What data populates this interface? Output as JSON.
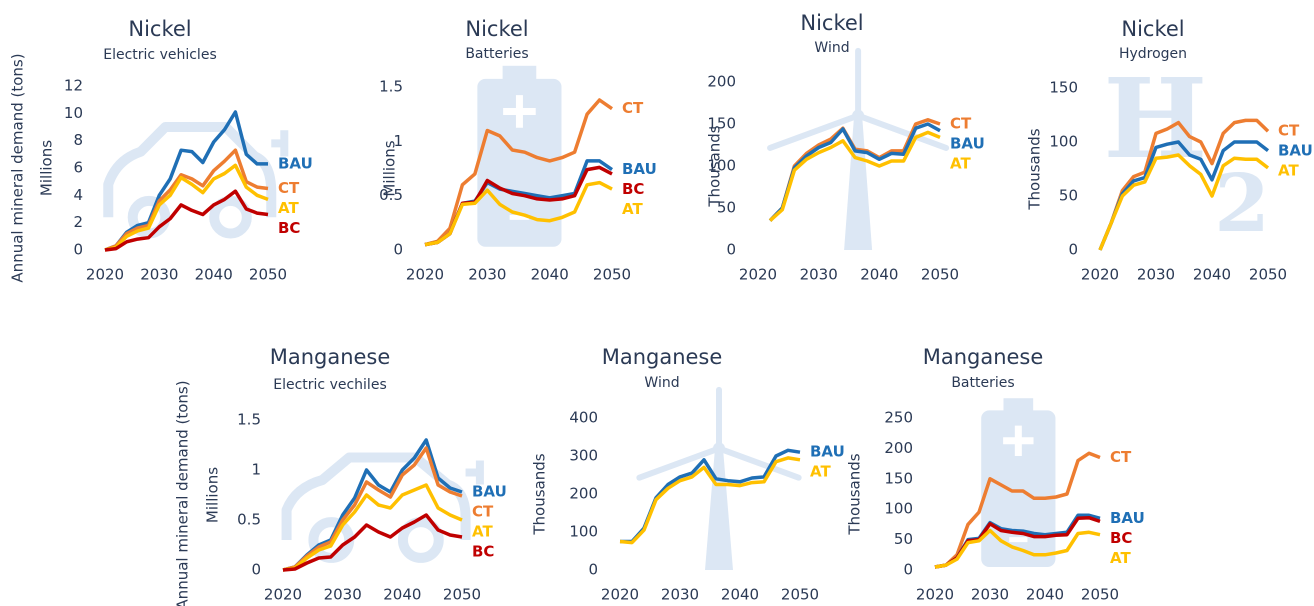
{
  "chart_data": [
    {
      "type": "line",
      "title": "Nickel",
      "subtitle": "Electric vehicles",
      "yaxis_title": "Annual mineral demand (tons)",
      "ylabel": "Millions",
      "icon": "car",
      "x": [
        2020,
        2022,
        2024,
        2026,
        2028,
        2030,
        2032,
        2034,
        2036,
        2038,
        2040,
        2042,
        2044,
        2046,
        2048,
        2050
      ],
      "xlim": [
        2020,
        2050
      ],
      "xticks": [
        2020,
        2030,
        2040,
        2050
      ],
      "ylim": [
        0,
        12
      ],
      "yticks": [
        0,
        2,
        4,
        6,
        8,
        10,
        12
      ],
      "series": [
        {
          "name": "BAU",
          "color": "#1f6fb5",
          "values": [
            0,
            0.3,
            1.3,
            1.8,
            2.0,
            4.0,
            5.2,
            7.3,
            7.2,
            6.4,
            7.9,
            8.8,
            10.1,
            7.0,
            6.3,
            6.3
          ]
        },
        {
          "name": "CT",
          "color": "#ed7d31",
          "values": [
            0,
            0.3,
            1.2,
            1.6,
            1.8,
            3.6,
            4.4,
            5.5,
            5.2,
            4.7,
            5.8,
            6.5,
            7.3,
            5.0,
            4.6,
            4.5
          ]
        },
        {
          "name": "AT",
          "color": "#ffc000",
          "values": [
            0,
            0.2,
            1.0,
            1.4,
            1.6,
            3.3,
            4.0,
            5.3,
            4.8,
            4.2,
            5.2,
            5.6,
            6.2,
            4.6,
            4.0,
            3.7
          ]
        },
        {
          "name": "BC",
          "color": "#c00000",
          "values": [
            0,
            0.1,
            0.6,
            0.8,
            0.9,
            1.7,
            2.3,
            3.3,
            2.9,
            2.6,
            3.3,
            3.7,
            4.3,
            3.0,
            2.7,
            2.6
          ]
        }
      ]
    },
    {
      "type": "line",
      "title": "Nickel",
      "subtitle": "Batteries",
      "ylabel": "Millions",
      "icon": "battery",
      "x": [
        2020,
        2022,
        2024,
        2026,
        2028,
        2030,
        2032,
        2034,
        2036,
        2038,
        2040,
        2042,
        2044,
        2046,
        2048,
        2050
      ],
      "xlim": [
        2020,
        2050
      ],
      "xticks": [
        2020,
        2030,
        2040,
        2050
      ],
      "ylim": [
        0,
        1.5
      ],
      "yticks": [
        0,
        0.5,
        1,
        1.5
      ],
      "series": [
        {
          "name": "CT",
          "color": "#ed7d31",
          "values": [
            0.05,
            0.08,
            0.2,
            0.6,
            0.7,
            1.1,
            1.05,
            0.92,
            0.9,
            0.85,
            0.82,
            0.85,
            0.9,
            1.25,
            1.38,
            1.3
          ]
        },
        {
          "name": "BAU",
          "color": "#1f6fb5",
          "values": [
            0.05,
            0.07,
            0.15,
            0.43,
            0.45,
            0.62,
            0.56,
            0.54,
            0.52,
            0.5,
            0.48,
            0.5,
            0.52,
            0.82,
            0.82,
            0.74
          ]
        },
        {
          "name": "BC",
          "color": "#c00000",
          "values": [
            0.05,
            0.07,
            0.15,
            0.43,
            0.44,
            0.64,
            0.57,
            0.52,
            0.5,
            0.47,
            0.46,
            0.47,
            0.5,
            0.74,
            0.76,
            0.7
          ]
        },
        {
          "name": "AT",
          "color": "#ffc000",
          "values": [
            0.05,
            0.07,
            0.15,
            0.42,
            0.43,
            0.55,
            0.42,
            0.35,
            0.32,
            0.28,
            0.27,
            0.3,
            0.35,
            0.6,
            0.62,
            0.56
          ]
        }
      ]
    },
    {
      "type": "line",
      "title": "Nickel",
      "subtitle": "Wind",
      "ylabel": "Thousands",
      "icon": "turbine",
      "x": [
        2020,
        2022,
        2024,
        2026,
        2028,
        2030,
        2032,
        2034,
        2036,
        2038,
        2040,
        2042,
        2044,
        2046,
        2048,
        2050
      ],
      "xlim": [
        2020,
        2050
      ],
      "xticks": [
        2020,
        2030,
        2040,
        2050
      ],
      "ylim": [
        0,
        200
      ],
      "yticks": [
        0,
        50,
        100,
        150,
        200
      ],
      "series": [
        {
          "name": "CT",
          "color": "#ed7d31",
          "values": [
            null,
            35,
            50,
            100,
            115,
            125,
            132,
            145,
            120,
            118,
            110,
            118,
            118,
            150,
            155,
            150
          ]
        },
        {
          "name": "BAU",
          "color": "#1f6fb5",
          "values": [
            null,
            35,
            50,
            98,
            112,
            122,
            128,
            144,
            118,
            116,
            108,
            115,
            114,
            145,
            150,
            142
          ]
        },
        {
          "name": "AT",
          "color": "#ffc000",
          "values": [
            null,
            35,
            48,
            95,
            108,
            116,
            122,
            130,
            110,
            106,
            100,
            106,
            106,
            134,
            140,
            134
          ]
        }
      ]
    },
    {
      "type": "line",
      "title": "Nickel",
      "subtitle": "Hydrogen",
      "ylabel": "Thousands",
      "watermark": [
        "H",
        "2"
      ],
      "x": [
        2020,
        2022,
        2024,
        2026,
        2028,
        2030,
        2032,
        2034,
        2036,
        2038,
        2040,
        2042,
        2044,
        2046,
        2048,
        2050
      ],
      "xlim": [
        2020,
        2050
      ],
      "xticks": [
        2020,
        2030,
        2040,
        2050
      ],
      "ylim": [
        0,
        150
      ],
      "yticks": [
        0,
        50,
        100,
        150
      ],
      "series": [
        {
          "name": "CT",
          "color": "#ed7d31",
          "values": [
            0,
            25,
            55,
            68,
            72,
            108,
            112,
            118,
            105,
            100,
            80,
            108,
            118,
            120,
            120,
            110
          ]
        },
        {
          "name": "BAU",
          "color": "#1f6fb5",
          "values": [
            0,
            25,
            52,
            64,
            67,
            95,
            98,
            100,
            88,
            84,
            65,
            92,
            100,
            100,
            100,
            92
          ]
        },
        {
          "name": "AT",
          "color": "#ffc000",
          "values": [
            0,
            25,
            50,
            60,
            63,
            85,
            86,
            88,
            78,
            70,
            50,
            78,
            85,
            84,
            84,
            76
          ]
        }
      ]
    },
    {
      "type": "line",
      "title": "Manganese",
      "subtitle": "Electric vechiles",
      "yaxis_title": "Annual mineral demand (tons)",
      "ylabel": "Millions",
      "icon": "car",
      "x": [
        2020,
        2022,
        2024,
        2026,
        2028,
        2030,
        2032,
        2034,
        2036,
        2038,
        2040,
        2042,
        2044,
        2046,
        2048,
        2050
      ],
      "xlim": [
        2020,
        2050
      ],
      "xticks": [
        2020,
        2030,
        2040,
        2050
      ],
      "ylim": [
        0,
        1.5
      ],
      "yticks": [
        0,
        0.5,
        1,
        1.5
      ],
      "series": [
        {
          "name": "BAU",
          "color": "#1f6fb5",
          "values": [
            0,
            0.03,
            0.15,
            0.25,
            0.3,
            0.55,
            0.72,
            1.0,
            0.85,
            0.78,
            1.0,
            1.12,
            1.3,
            0.92,
            0.82,
            0.78
          ]
        },
        {
          "name": "CT",
          "color": "#ed7d31",
          "values": [
            0,
            0.03,
            0.14,
            0.23,
            0.28,
            0.5,
            0.65,
            0.88,
            0.8,
            0.73,
            0.95,
            1.05,
            1.22,
            0.85,
            0.78,
            0.74
          ]
        },
        {
          "name": "AT",
          "color": "#ffc000",
          "values": [
            0,
            0.02,
            0.12,
            0.2,
            0.24,
            0.45,
            0.58,
            0.75,
            0.65,
            0.62,
            0.75,
            0.8,
            0.85,
            0.62,
            0.55,
            0.5
          ]
        },
        {
          "name": "BC",
          "color": "#c00000",
          "values": [
            0,
            0.01,
            0.07,
            0.12,
            0.13,
            0.25,
            0.33,
            0.45,
            0.38,
            0.33,
            0.42,
            0.48,
            0.55,
            0.4,
            0.35,
            0.33
          ]
        }
      ]
    },
    {
      "type": "line",
      "title": "Manganese",
      "subtitle": "Wind",
      "ylabel": "Thousands",
      "icon": "turbine",
      "x": [
        2020,
        2022,
        2024,
        2026,
        2028,
        2030,
        2032,
        2034,
        2036,
        2038,
        2040,
        2042,
        2044,
        2046,
        2048,
        2050
      ],
      "xlim": [
        2020,
        2050
      ],
      "xticks": [
        2020,
        2030,
        2040,
        2050
      ],
      "ylim": [
        0,
        400
      ],
      "yticks": [
        0,
        100,
        200,
        300,
        400
      ],
      "series": [
        {
          "name": "BAU",
          "color": "#1f6fb5",
          "values": [
            75,
            75,
            110,
            190,
            225,
            245,
            255,
            290,
            240,
            235,
            232,
            242,
            245,
            300,
            315,
            310
          ]
        },
        {
          "name": "AT",
          "color": "#ffc000",
          "values": [
            75,
            72,
            105,
            185,
            215,
            235,
            245,
            270,
            225,
            225,
            222,
            230,
            232,
            285,
            295,
            290
          ]
        }
      ]
    },
    {
      "type": "line",
      "title": "Manganese",
      "subtitle": "Batteries",
      "ylabel": "Thousands",
      "icon": "battery",
      "x": [
        2020,
        2022,
        2024,
        2026,
        2028,
        2030,
        2032,
        2034,
        2036,
        2038,
        2040,
        2042,
        2044,
        2046,
        2048,
        2050
      ],
      "xlim": [
        2020,
        2050
      ],
      "xticks": [
        2020,
        2030,
        2040,
        2050
      ],
      "ylim": [
        0,
        250
      ],
      "yticks": [
        0,
        50,
        100,
        150,
        200,
        250
      ],
      "series": [
        {
          "name": "CT",
          "color": "#ed7d31",
          "values": [
            5,
            8,
            25,
            75,
            95,
            150,
            140,
            130,
            130,
            118,
            118,
            120,
            125,
            180,
            192,
            185
          ]
        },
        {
          "name": "BAU",
          "color": "#1f6fb5",
          "values": [
            5,
            8,
            20,
            50,
            52,
            78,
            68,
            65,
            64,
            60,
            58,
            60,
            62,
            90,
            90,
            85
          ]
        },
        {
          "name": "BC",
          "color": "#c00000",
          "values": [
            5,
            8,
            20,
            48,
            50,
            76,
            65,
            62,
            60,
            55,
            55,
            57,
            58,
            85,
            86,
            80
          ]
        },
        {
          "name": "AT",
          "color": "#ffc000",
          "values": [
            5,
            8,
            18,
            45,
            48,
            65,
            48,
            38,
            32,
            25,
            25,
            28,
            32,
            60,
            62,
            58
          ]
        }
      ]
    }
  ]
}
